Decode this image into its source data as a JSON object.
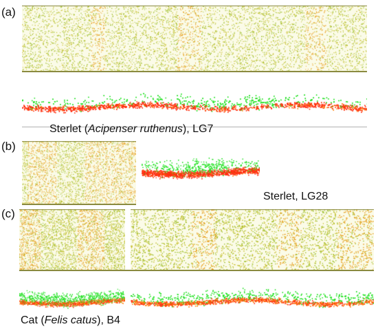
{
  "panels": {
    "a": {
      "letter": "(a)",
      "caption_prefix": "Sterlet (",
      "caption_species": "Acipenser ruthenus",
      "caption_suffix": "), LG7"
    },
    "b": {
      "letter": "(b)",
      "caption": "Sterlet, LG28"
    },
    "c": {
      "letter": "(c)",
      "caption_prefix": "Cat (",
      "caption_species": "Felis catus",
      "caption_suffix": "), B4"
    }
  },
  "colors": {
    "top_yellow": "#c8c030",
    "top_orange": "#e8a020",
    "top_green": "#a0c030",
    "bottom_red": "#ff3010",
    "bottom_green": "#20e020",
    "bottom_orange": "#ff8010",
    "axis": "#8a8a40"
  }
}
